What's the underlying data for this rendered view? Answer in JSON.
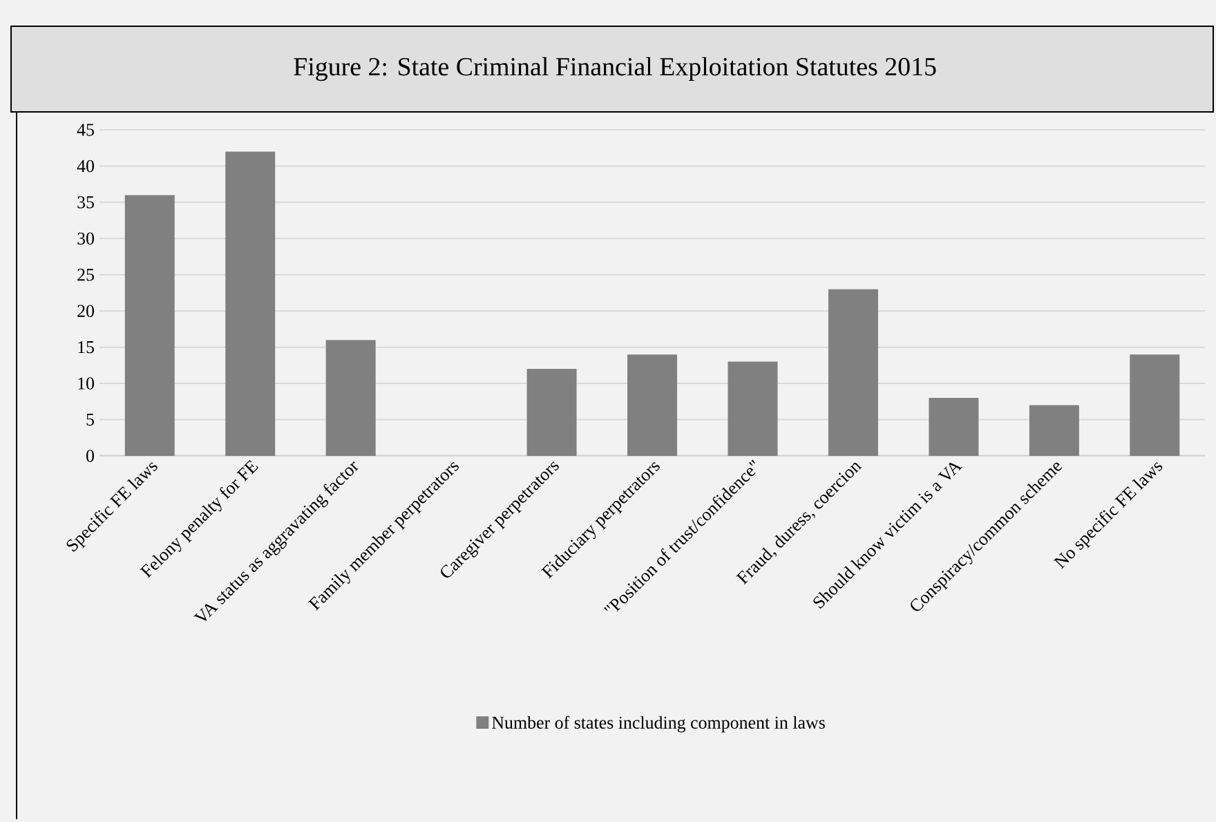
{
  "chart_data": {
    "type": "bar",
    "title": "Figure 2: State Criminal Financial Exploitation Statutes 2015",
    "categories": [
      "Specific FE laws",
      "Felony penalty for FE",
      "VA status as aggravating factor",
      "Family member perpetrators",
      "Caregiver perpetrators",
      "Fiduciary perpetrators",
      "\"Position of trust/confidence\"",
      "Fraud, duress, coercion",
      "Should know victim is a VA",
      "Conspiracy/common scheme",
      "No specific FE laws"
    ],
    "series": [
      {
        "name": "Number of states including component in laws",
        "color": "#808080",
        "values": [
          36,
          42,
          16,
          0,
          12,
          14,
          13,
          23,
          8,
          7,
          14
        ]
      }
    ],
    "ylim": [
      0,
      45
    ],
    "yticks": [
      0,
      5,
      10,
      15,
      20,
      25,
      30,
      35,
      40,
      45
    ],
    "grid": "y",
    "legend": "bottom"
  }
}
